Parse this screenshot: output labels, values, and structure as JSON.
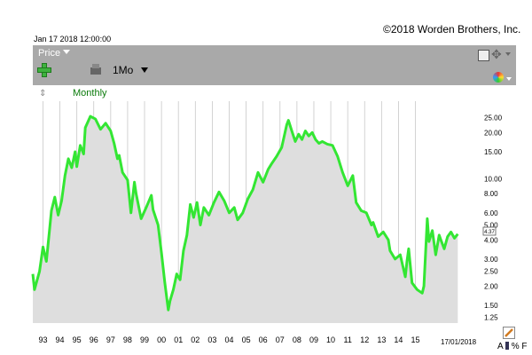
{
  "header": {
    "copyright": "©2018 Worden Brothers, Inc.",
    "timestamp": "Jan 17 2018 12:00:00"
  },
  "toolbar": {
    "price_label": "Price",
    "period_label": "1Mo",
    "icons": [
      "plus-icon",
      "period-icon",
      "save-icon",
      "move-icon",
      "color-wheel-icon"
    ]
  },
  "chart_header": {
    "frequency": "Monthly"
  },
  "bottom": {
    "date_end": "17/01/2018",
    "a_label": "A",
    "pct_label": "%",
    "f_label": "F"
  },
  "colors": {
    "line": "#33e633",
    "area": "#dedede",
    "grid": "#c8c8c8",
    "toolbar": "#a9a9a9"
  },
  "chart_data": {
    "type": "area",
    "title": "",
    "xlabel": "",
    "ylabel": "",
    "y_scale": "log",
    "y_ticks": [
      "25.00",
      "20.00",
      "15.00",
      "10.00",
      "8.00",
      "6.00",
      "5.00",
      "4.00",
      "3.00",
      "2.50",
      "2.00",
      "1.50",
      "1.25"
    ],
    "x_ticks": [
      "93",
      "94",
      "95",
      "96",
      "97",
      "98",
      "99",
      "00",
      "01",
      "02",
      "03",
      "04",
      "05",
      "06",
      "07",
      "08",
      "09",
      "10",
      "11",
      "12",
      "13",
      "14",
      "15"
    ],
    "last_value_badge": "4.37",
    "series": [
      {
        "x": [
          1992.9,
          1993.0,
          1993.3,
          1993.5,
          1993.7,
          1993.9,
          1994.0,
          1994.2,
          1994.4,
          1994.6,
          1994.8,
          1995.0,
          1995.2,
          1995.4,
          1995.5,
          1995.7,
          1995.9,
          1996.0,
          1996.3,
          1996.6,
          1996.9,
          1997.2,
          1997.5,
          1997.7,
          1997.9,
          1998.0,
          1998.2,
          1998.5,
          1998.7,
          1998.9,
          1999.0,
          1999.3,
          1999.6,
          1999.9,
          2000.0,
          2000.3,
          2000.5,
          2000.7,
          2000.9,
          2001.0,
          2001.2,
          2001.4,
          2001.6,
          2001.8,
          2002.0,
          2002.2,
          2002.4,
          2002.6,
          2002.8,
          2003.0,
          2003.3,
          2003.6,
          2003.9,
          2004.2,
          2004.5,
          2004.8,
          2005.0,
          2005.3,
          2005.6,
          2005.9,
          2006.2,
          2006.5,
          2006.8,
          2007.0,
          2007.3,
          2007.6,
          2007.9,
          2008.0,
          2008.2,
          2008.4,
          2008.6,
          2008.8,
          2009.0,
          2009.2,
          2009.4,
          2009.6,
          2009.8,
          2010.0,
          2010.3,
          2010.6,
          2010.9,
          2011.2,
          2011.5,
          2011.8,
          2012.0,
          2012.3,
          2012.6,
          2012.9,
          2013.0,
          2013.3,
          2013.6,
          2013.9,
          2014.0,
          2014.3,
          2014.6,
          2014.9,
          2015.0,
          2015.1,
          2015.3,
          2015.6,
          2015.9,
          2016.0,
          2016.2,
          2016.3,
          2016.5,
          2016.7,
          2016.9,
          2017.0,
          2017.2,
          2017.4,
          2017.6,
          2017.8,
          2018.0
        ],
        "y": [
          2.4,
          1.9,
          2.5,
          3.6,
          2.9,
          4.8,
          6.2,
          7.6,
          5.8,
          7.2,
          10.5,
          13.5,
          11.8,
          15.0,
          12.0,
          16.5,
          14.5,
          21.5,
          25.5,
          24.5,
          21.0,
          23.0,
          20.5,
          17.0,
          13.5,
          14.2,
          11.0,
          9.8,
          6.0,
          9.5,
          8.0,
          5.5,
          6.5,
          7.8,
          6.3,
          5.0,
          3.3,
          2.1,
          1.4,
          1.6,
          1.9,
          2.4,
          2.2,
          3.4,
          4.3,
          6.8,
          5.6,
          7.0,
          5.0,
          6.5,
          5.8,
          7.0,
          8.2,
          7.2,
          6.0,
          6.5,
          5.4,
          6.0,
          7.4,
          8.5,
          11.0,
          9.5,
          11.5,
          12.5,
          14.0,
          16.0,
          22.5,
          24.0,
          20.5,
          17.5,
          19.5,
          18.0,
          20.5,
          19.0,
          20.0,
          18.0,
          17.0,
          17.5,
          16.8,
          16.5,
          14.0,
          11.0,
          9.0,
          10.5,
          7.0,
          6.2,
          6.0,
          5.0,
          5.2,
          4.2,
          4.5,
          4.0,
          3.4,
          3.0,
          3.2,
          2.3,
          2.9,
          3.5,
          2.1,
          1.9,
          1.8,
          2.0,
          5.5,
          3.9,
          4.6,
          3.2,
          4.3,
          4.0,
          3.5,
          4.2,
          4.5,
          4.1,
          4.37
        ]
      }
    ]
  }
}
